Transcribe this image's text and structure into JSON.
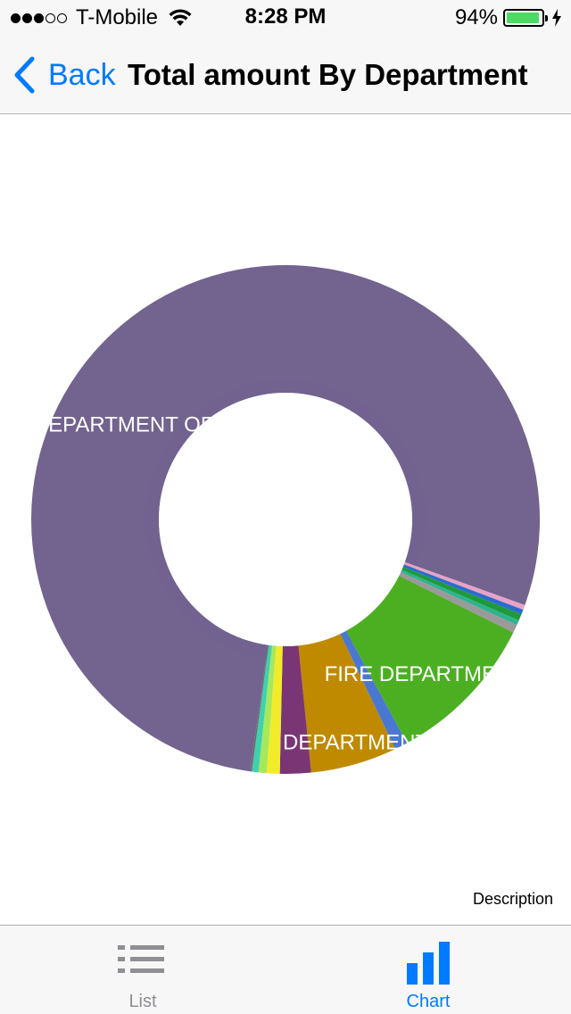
{
  "status_bar": {
    "carrier": "T-Mobile",
    "signal_bars_filled": 3,
    "signal_bars_total": 5,
    "time": "8:28 PM",
    "battery_percent": "94%",
    "battery_level": 0.94,
    "battery_color": "#4cd964"
  },
  "nav": {
    "back_label": "Back",
    "title": "Total amount By Department",
    "accent_color": "#007aff"
  },
  "chart": {
    "description": "Description"
  },
  "chart_data": {
    "type": "pie",
    "style": "donut",
    "labels": [
      "DEPARTMENT OF POLICE",
      "FIRE DEPARTMENT",
      "DEPARTMENT OF PERSO"
    ],
    "slices": [
      {
        "label": "DEPARTMENT OF POLICE",
        "value": 75.5,
        "color": "#72638f"
      },
      {
        "label": "",
        "value": 0.3,
        "color": "#e7a3c4"
      },
      {
        "label": "",
        "value": 0.3,
        "color": "#2a6bd1"
      },
      {
        "label": "",
        "value": 0.4,
        "color": "#1e9a3c"
      },
      {
        "label": "",
        "value": 0.3,
        "color": "#2fb38f"
      },
      {
        "label": "",
        "value": 0.5,
        "color": "#9a9a9a"
      },
      {
        "label": "FIRE DEPARTMENT",
        "value": 9.4,
        "color": "#4caf22"
      },
      {
        "label": "",
        "value": 0.8,
        "color": "#4a78d1"
      },
      {
        "label": "DEPARTMENT OF PERSO",
        "value": 5.3,
        "color": "#bf8a00"
      },
      {
        "label": "",
        "value": 1.9,
        "color": "#7a3575"
      },
      {
        "label": "",
        "value": 0.8,
        "color": "#f2eb2a"
      },
      {
        "label": "",
        "value": 0.5,
        "color": "#a5e85e"
      },
      {
        "label": "",
        "value": 0.4,
        "color": "#3fd0b0"
      },
      {
        "label": "",
        "value": 0.1,
        "color": "#6b6b6b"
      }
    ]
  },
  "tabs": [
    {
      "label": "List",
      "icon": "list-icon",
      "active": false
    },
    {
      "label": "Chart",
      "icon": "bar-chart-icon",
      "active": true
    }
  ],
  "colors": {
    "tab_active": "#007aff",
    "tab_inactive": "#8e8e93"
  }
}
